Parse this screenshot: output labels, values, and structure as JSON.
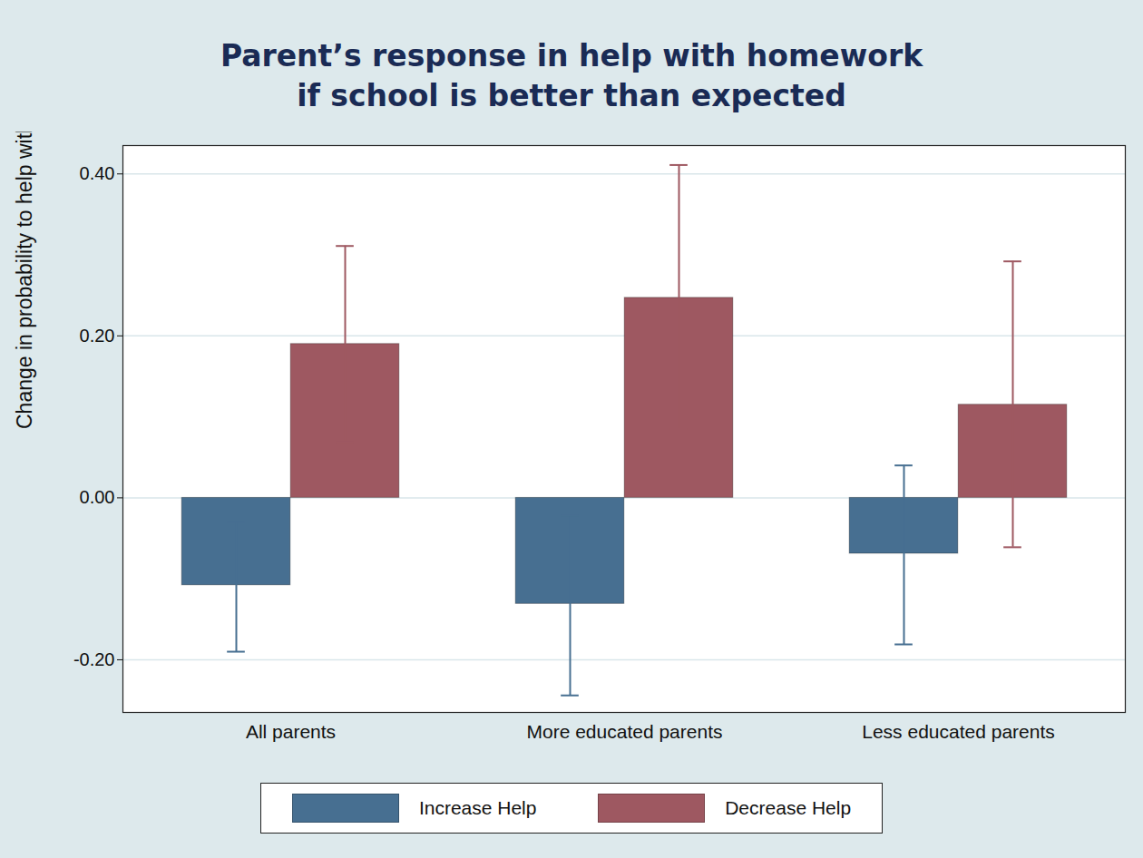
{
  "chart_data": {
    "type": "bar",
    "title": "Parent’s response in help with homework\nif school is better than expected",
    "y_label": "Change in probability to help with homework",
    "categories": [
      "All parents",
      "More educated parents",
      "Less educated parents"
    ],
    "series": [
      {
        "name": "Increase Help",
        "color": "#476f91",
        "values": [
          -0.108,
          -0.131,
          -0.069
        ],
        "ci_low": [
          -0.19,
          -0.244,
          -0.181
        ],
        "ci_high": [
          -0.03,
          -0.022,
          0.04
        ]
      },
      {
        "name": "Decrease Help",
        "color": "#9e5861",
        "values": [
          0.19,
          0.247,
          0.115
        ],
        "ci_low": [
          0.069,
          0.085,
          -0.061
        ],
        "ci_high": [
          0.311,
          0.411,
          0.292
        ]
      }
    ],
    "ylim": [
      -0.265,
      0.435
    ],
    "yticks": [
      {
        "value": -0.2,
        "label": "-0.20"
      },
      {
        "value": 0,
        "label": "0.00"
      },
      {
        "value": 0.2,
        "label": "0.20"
      },
      {
        "value": 0.4,
        "label": "0.40"
      }
    ],
    "grid": true,
    "legend": "bottom"
  }
}
